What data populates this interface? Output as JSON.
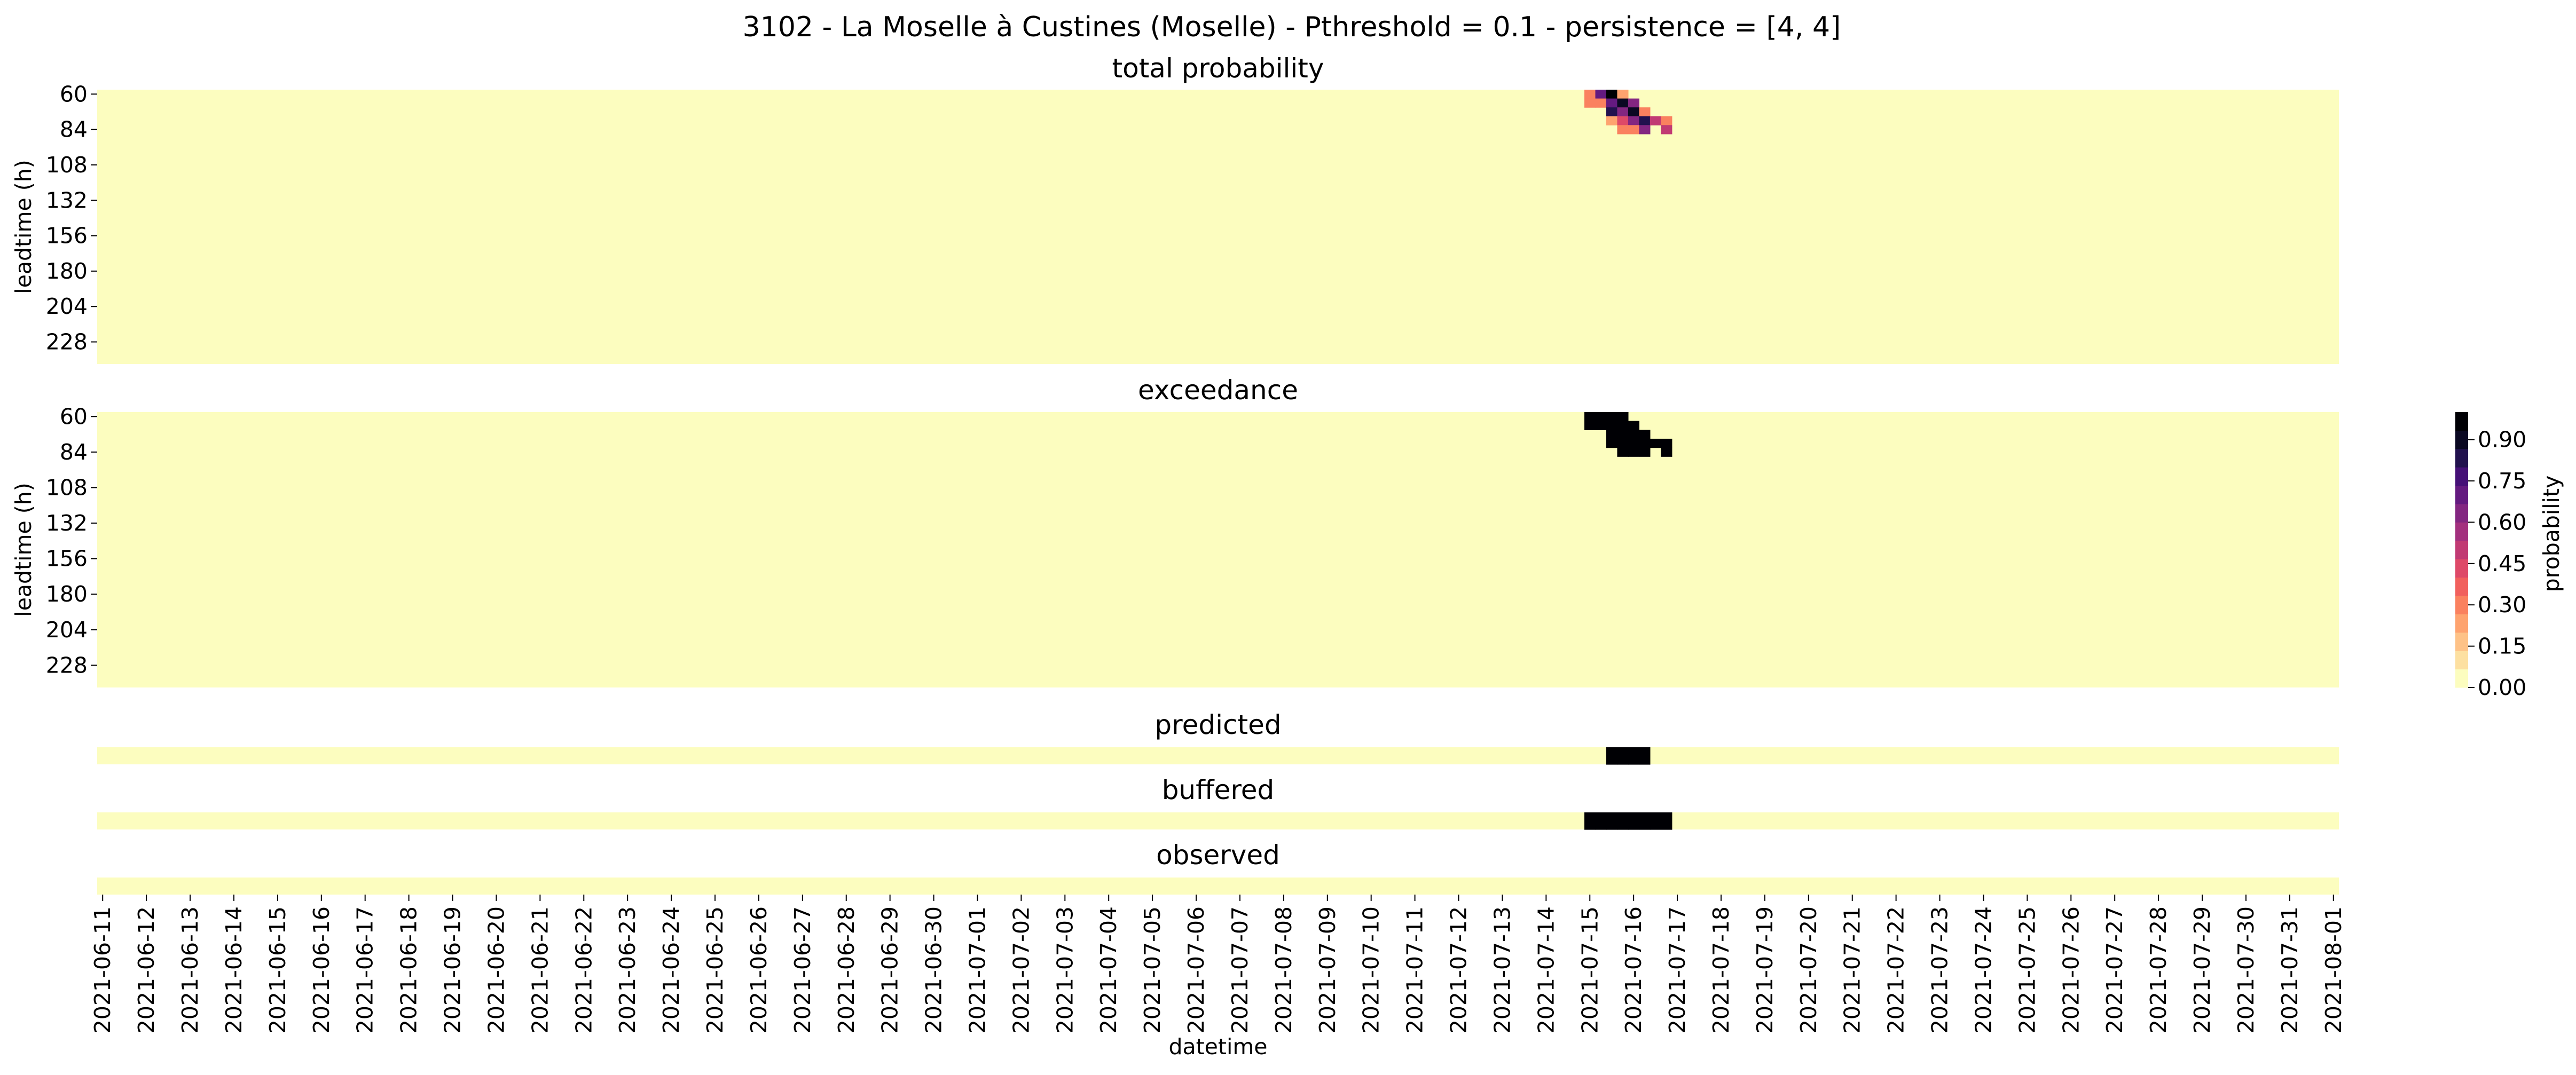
{
  "chart_data": {
    "type": "heatmap",
    "title": "3102 - La Moselle à Custines (Moselle) - Pthreshold = 0.1 - persistence = [4, 4]",
    "xlabel": "datetime",
    "x_tick_labels": [
      "2021-06-11",
      "2021-06-12",
      "2021-06-13",
      "2021-06-14",
      "2021-06-15",
      "2021-06-16",
      "2021-06-17",
      "2021-06-18",
      "2021-06-19",
      "2021-06-20",
      "2021-06-21",
      "2021-06-22",
      "2021-06-23",
      "2021-06-24",
      "2021-06-25",
      "2021-06-26",
      "2021-06-27",
      "2021-06-28",
      "2021-06-29",
      "2021-06-30",
      "2021-07-01",
      "2021-07-02",
      "2021-07-03",
      "2021-07-04",
      "2021-07-05",
      "2021-07-06",
      "2021-07-07",
      "2021-07-08",
      "2021-07-09",
      "2021-07-10",
      "2021-07-11",
      "2021-07-12",
      "2021-07-13",
      "2021-07-14",
      "2021-07-15",
      "2021-07-16",
      "2021-07-17",
      "2021-07-18",
      "2021-07-19",
      "2021-07-20",
      "2021-07-21",
      "2021-07-22",
      "2021-07-23",
      "2021-07-24",
      "2021-07-25",
      "2021-07-26",
      "2021-07-27",
      "2021-07-28",
      "2021-07-29",
      "2021-07-30",
      "2021-07-31",
      "2021-08-01"
    ],
    "time_step_hours": 6,
    "colormap": [
      "#fcfdbf",
      "#fde0a1",
      "#fec287",
      "#fea36f",
      "#fa815f",
      "#f1605d",
      "#de4968",
      "#c13a73",
      "#a3307e",
      "#832681",
      "#641a80",
      "#451077",
      "#21114e",
      "#0a0822",
      "#000004"
    ],
    "colorbar": {
      "label": "probability",
      "ticks": [
        "0.00",
        "0.15",
        "0.30",
        "0.45",
        "0.60",
        "0.75",
        "0.90"
      ],
      "range": [
        0,
        1
      ]
    },
    "panels": [
      {
        "name": "total probability",
        "ylabel": "leadtime (h)",
        "y_tick_labels": [
          "60",
          "84",
          "108",
          "132",
          "156",
          "180",
          "204",
          "228"
        ],
        "leadtimes_h": [
          60,
          66,
          72,
          78,
          84,
          90,
          96,
          102,
          108,
          114,
          120,
          126,
          132,
          138,
          144,
          150,
          156,
          162,
          168,
          174,
          180,
          186,
          192,
          198,
          204,
          210,
          216,
          222,
          228,
          234,
          240
        ],
        "cells": [
          {
            "t": "2021-07-15 00:00",
            "lead": 60,
            "p": 0.3
          },
          {
            "t": "2021-07-15 06:00",
            "lead": 60,
            "p": 0.7
          },
          {
            "t": "2021-07-15 12:00",
            "lead": 60,
            "p": 1.0
          },
          {
            "t": "2021-07-15 18:00",
            "lead": 60,
            "p": 0.2
          },
          {
            "t": "2021-07-15 00:00",
            "lead": 66,
            "p": 0.3
          },
          {
            "t": "2021-07-15 06:00",
            "lead": 66,
            "p": 0.3
          },
          {
            "t": "2021-07-15 12:00",
            "lead": 66,
            "p": 0.7
          },
          {
            "t": "2021-07-15 18:00",
            "lead": 66,
            "p": 0.9
          },
          {
            "t": "2021-07-16 00:00",
            "lead": 66,
            "p": 0.6
          },
          {
            "t": "2021-07-15 12:00",
            "lead": 72,
            "p": 0.8
          },
          {
            "t": "2021-07-15 18:00",
            "lead": 72,
            "p": 0.6
          },
          {
            "t": "2021-07-16 00:00",
            "lead": 72,
            "p": 0.9
          },
          {
            "t": "2021-07-16 06:00",
            "lead": 72,
            "p": 0.3
          },
          {
            "t": "2021-07-15 12:00",
            "lead": 78,
            "p": 0.2
          },
          {
            "t": "2021-07-15 18:00",
            "lead": 78,
            "p": 0.4
          },
          {
            "t": "2021-07-16 00:00",
            "lead": 78,
            "p": 0.6
          },
          {
            "t": "2021-07-16 06:00",
            "lead": 78,
            "p": 0.8
          },
          {
            "t": "2021-07-16 12:00",
            "lead": 78,
            "p": 0.5
          },
          {
            "t": "2021-07-16 18:00",
            "lead": 78,
            "p": 0.3
          },
          {
            "t": "2021-07-15 18:00",
            "lead": 84,
            "p": 0.3
          },
          {
            "t": "2021-07-16 00:00",
            "lead": 84,
            "p": 0.3
          },
          {
            "t": "2021-07-16 06:00",
            "lead": 84,
            "p": 0.6
          },
          {
            "t": "2021-07-16 18:00",
            "lead": 84,
            "p": 0.5
          }
        ]
      },
      {
        "name": "exceedance",
        "ylabel": "leadtime (h)",
        "y_tick_labels": [
          "60",
          "84",
          "108",
          "132",
          "156",
          "180",
          "204",
          "228"
        ],
        "leadtimes_h": [
          60,
          66,
          72,
          78,
          84,
          90,
          96,
          102,
          108,
          114,
          120,
          126,
          132,
          138,
          144,
          150,
          156,
          162,
          168,
          174,
          180,
          186,
          192,
          198,
          204,
          210,
          216,
          222,
          228,
          234,
          240
        ],
        "cells": [
          {
            "t": "2021-07-15 00:00",
            "lead": 60,
            "p": 1
          },
          {
            "t": "2021-07-15 06:00",
            "lead": 60,
            "p": 1
          },
          {
            "t": "2021-07-15 12:00",
            "lead": 60,
            "p": 1
          },
          {
            "t": "2021-07-15 18:00",
            "lead": 60,
            "p": 1
          },
          {
            "t": "2021-07-15 00:00",
            "lead": 66,
            "p": 1
          },
          {
            "t": "2021-07-15 06:00",
            "lead": 66,
            "p": 1
          },
          {
            "t": "2021-07-15 12:00",
            "lead": 66,
            "p": 1
          },
          {
            "t": "2021-07-15 18:00",
            "lead": 66,
            "p": 1
          },
          {
            "t": "2021-07-16 00:00",
            "lead": 66,
            "p": 1
          },
          {
            "t": "2021-07-15 12:00",
            "lead": 72,
            "p": 1
          },
          {
            "t": "2021-07-15 18:00",
            "lead": 72,
            "p": 1
          },
          {
            "t": "2021-07-16 00:00",
            "lead": 72,
            "p": 1
          },
          {
            "t": "2021-07-16 06:00",
            "lead": 72,
            "p": 1
          },
          {
            "t": "2021-07-15 12:00",
            "lead": 78,
            "p": 1
          },
          {
            "t": "2021-07-15 18:00",
            "lead": 78,
            "p": 1
          },
          {
            "t": "2021-07-16 00:00",
            "lead": 78,
            "p": 1
          },
          {
            "t": "2021-07-16 06:00",
            "lead": 78,
            "p": 1
          },
          {
            "t": "2021-07-16 12:00",
            "lead": 78,
            "p": 1
          },
          {
            "t": "2021-07-16 18:00",
            "lead": 78,
            "p": 1
          },
          {
            "t": "2021-07-15 18:00",
            "lead": 84,
            "p": 1
          },
          {
            "t": "2021-07-16 00:00",
            "lead": 84,
            "p": 1
          },
          {
            "t": "2021-07-16 06:00",
            "lead": 84,
            "p": 1
          },
          {
            "t": "2021-07-16 18:00",
            "lead": 84,
            "p": 1
          }
        ]
      },
      {
        "name": "predicted",
        "cells": [
          {
            "t": "2021-07-15 12:00",
            "p": 1
          },
          {
            "t": "2021-07-15 18:00",
            "p": 1
          },
          {
            "t": "2021-07-16 00:00",
            "p": 1
          },
          {
            "t": "2021-07-16 06:00",
            "p": 1
          }
        ]
      },
      {
        "name": "buffered",
        "cells": [
          {
            "t": "2021-07-15 00:00",
            "p": 1
          },
          {
            "t": "2021-07-15 06:00",
            "p": 1
          },
          {
            "t": "2021-07-15 12:00",
            "p": 1
          },
          {
            "t": "2021-07-15 18:00",
            "p": 1
          },
          {
            "t": "2021-07-16 00:00",
            "p": 1
          },
          {
            "t": "2021-07-16 06:00",
            "p": 1
          },
          {
            "t": "2021-07-16 12:00",
            "p": 1
          },
          {
            "t": "2021-07-16 18:00",
            "p": 1
          }
        ]
      },
      {
        "name": "observed",
        "cells": []
      }
    ]
  }
}
